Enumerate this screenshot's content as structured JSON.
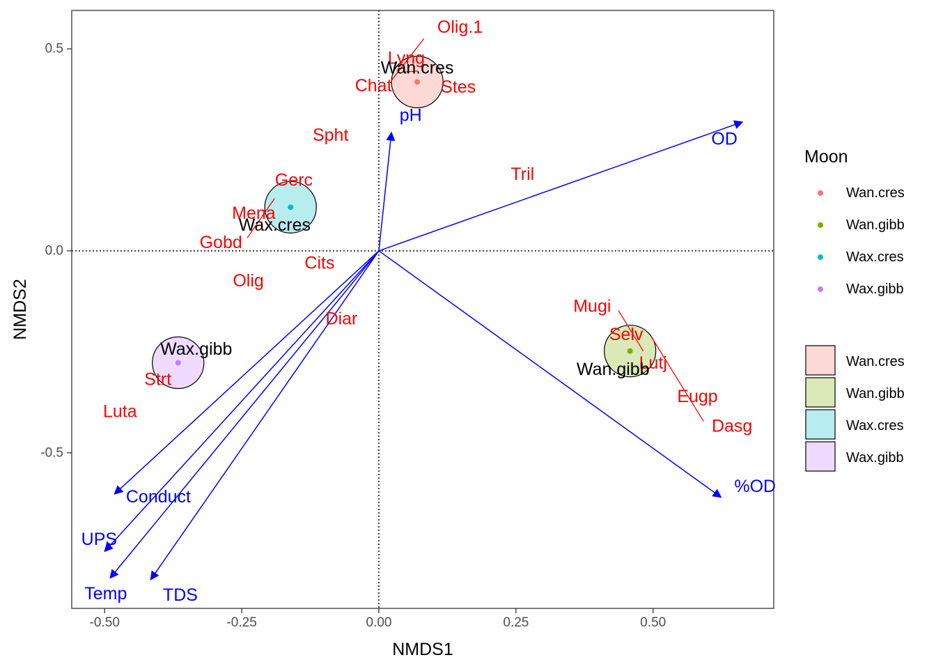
{
  "chart_data": {
    "type": "scatter",
    "title": "",
    "xlabel": "NMDS1",
    "ylabel": "NMDS2",
    "xlim": [
      -0.56,
      0.72
    ],
    "ylim": [
      -0.885,
      0.595
    ],
    "x_ticks": [
      -0.5,
      -0.25,
      0.0,
      0.25,
      0.5
    ],
    "x_tick_labels": [
      "-0.50",
      "-0.25",
      "0.00",
      "0.25",
      "0.50"
    ],
    "y_ticks": [
      -0.5,
      0.0,
      0.5
    ],
    "y_tick_labels": [
      "-0.5",
      "0.0",
      "0.5"
    ],
    "grid": false,
    "reference_lines": {
      "x": 0,
      "y": 0,
      "style": "dotted"
    },
    "legend_position": "right",
    "legend_points": {
      "title": "Moon",
      "items": [
        {
          "label": "Wan.cres",
          "color": "#F8766D"
        },
        {
          "label": "Wan.gibb",
          "color": "#7CAE00"
        },
        {
          "label": "Wax.cres",
          "color": "#00BFC4"
        },
        {
          "label": "Wax.gibb",
          "color": "#C77CFF"
        }
      ]
    },
    "legend_fills": {
      "items": [
        {
          "label": "Wan.cres",
          "color": "#F8766D"
        },
        {
          "label": "Wan.gibb",
          "color": "#7CAE00"
        },
        {
          "label": "Wax.cres",
          "color": "#00BFC4"
        },
        {
          "label": "Wax.gibb",
          "color": "#C77CFF"
        }
      ]
    },
    "groups": [
      {
        "name": "Wan.cres",
        "x": 0.07,
        "y": 0.418,
        "r": 0.047,
        "color": "#F8766D",
        "label_x": 0.07,
        "label_y": 0.453
      },
      {
        "name": "Wan.gibb",
        "x": 0.458,
        "y": -0.248,
        "r": 0.047,
        "color": "#7CAE00",
        "label_x": 0.427,
        "label_y": -0.293
      },
      {
        "name": "Wax.cres",
        "x": -0.161,
        "y": 0.108,
        "r": 0.047,
        "color": "#00BFC4",
        "label_x": -0.19,
        "label_y": 0.064
      },
      {
        "name": "Wax.gibb",
        "x": -0.366,
        "y": -0.277,
        "r": 0.047,
        "color": "#C77CFF",
        "label_x": -0.333,
        "label_y": -0.243
      }
    ],
    "species": [
      {
        "label": "Olig.1",
        "x": 0.148,
        "y": 0.554
      },
      {
        "label": "Lyng",
        "x": 0.05,
        "y": 0.477
      },
      {
        "label": "Chat",
        "x": -0.01,
        "y": 0.409
      },
      {
        "label": "Stes",
        "x": 0.145,
        "y": 0.405
      },
      {
        "label": "Spht",
        "x": -0.088,
        "y": 0.286
      },
      {
        "label": "Tril",
        "x": 0.262,
        "y": 0.19
      },
      {
        "label": "Gerc",
        "x": -0.155,
        "y": 0.175
      },
      {
        "label": "Mena",
        "x": -0.228,
        "y": 0.093
      },
      {
        "label": "Gobd",
        "x": -0.288,
        "y": 0.021
      },
      {
        "label": "Cits",
        "x": -0.108,
        "y": -0.03
      },
      {
        "label": "Olig",
        "x": -0.238,
        "y": -0.074
      },
      {
        "label": "Diar",
        "x": -0.068,
        "y": -0.168
      },
      {
        "label": "Mugi",
        "x": 0.389,
        "y": -0.137
      },
      {
        "label": "Selv",
        "x": 0.451,
        "y": -0.207
      },
      {
        "label": "Lutj",
        "x": 0.5,
        "y": -0.278
      },
      {
        "label": "Eugp",
        "x": 0.581,
        "y": -0.361
      },
      {
        "label": "Dasg",
        "x": 0.644,
        "y": -0.434
      },
      {
        "label": "Strt",
        "x": -0.403,
        "y": -0.318
      },
      {
        "label": "Luta",
        "x": -0.472,
        "y": -0.398
      }
    ],
    "species_leaders": [
      {
        "from": [
          0.082,
          0.525
        ],
        "to": [
          0.022,
          0.42
        ]
      },
      {
        "from": [
          0.072,
          0.445
        ],
        "to": [
          0.046,
          0.443
        ]
      },
      {
        "from": [
          -0.19,
          0.13
        ],
        "to": [
          -0.24,
          0.032
        ]
      },
      {
        "from": [
          0.437,
          -0.148
        ],
        "to": [
          0.482,
          -0.248
        ]
      },
      {
        "from": [
          0.497,
          -0.213
        ],
        "to": [
          0.592,
          -0.422
        ]
      }
    ],
    "vectors": [
      {
        "label": "pH",
        "x": 0.023,
        "y": 0.293,
        "label_x": 0.058,
        "label_y": 0.335
      },
      {
        "label": "OD",
        "x": 0.663,
        "y": 0.319,
        "label_x": 0.63,
        "label_y": 0.277
      },
      {
        "label": "%OD",
        "x": 0.624,
        "y": -0.61,
        "label_x": 0.686,
        "label_y": -0.583
      },
      {
        "label": "Conduct",
        "x": -0.482,
        "y": -0.602,
        "label_x": -0.402,
        "label_y": -0.609
      },
      {
        "label": "UPS",
        "x": -0.5,
        "y": -0.744,
        "label_x": -0.51,
        "label_y": -0.714
      },
      {
        "label": "Temp",
        "x": -0.49,
        "y": -0.81,
        "label_x": -0.498,
        "label_y": -0.849
      },
      {
        "label": "TDS",
        "x": -0.416,
        "y": -0.814,
        "label_x": -0.362,
        "label_y": -0.852
      }
    ]
  }
}
